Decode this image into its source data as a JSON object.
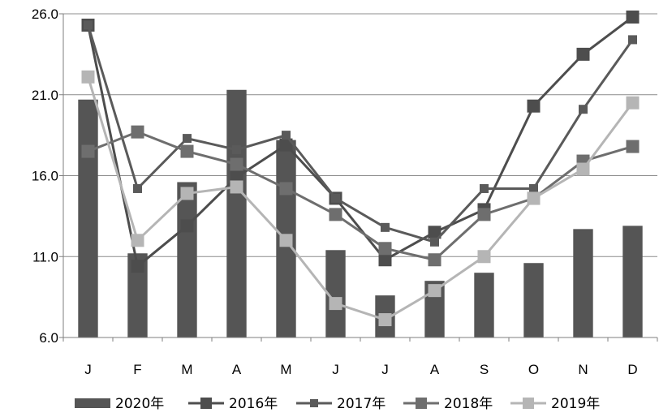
{
  "chart_data": {
    "type": "bar+line",
    "categories": [
      "J",
      "F",
      "M",
      "A",
      "M",
      "J",
      "J",
      "A",
      "S",
      "O",
      "N",
      "D"
    ],
    "ylim": [
      6.0,
      26.0
    ],
    "yticks": [
      "6.0",
      "11.0",
      "16.0",
      "21.0",
      "26.0"
    ],
    "grid": true,
    "legend_position": "bottom",
    "bar_series": {
      "name": "2020年",
      "color": "#555555",
      "values": [
        20.7,
        11.2,
        15.6,
        21.3,
        18.2,
        11.4,
        8.6,
        9.5,
        10.0,
        10.6,
        12.7,
        12.9
      ]
    },
    "series": [
      {
        "name": "2016年",
        "color": "#4d4d4d",
        "marker": "square-large",
        "values": [
          25.3,
          10.4,
          12.9,
          15.9,
          17.9,
          14.6,
          10.8,
          12.5,
          13.9,
          20.3,
          23.5,
          25.8
        ]
      },
      {
        "name": "2017年",
        "color": "#5a5a5a",
        "marker": "square-small",
        "values": [
          25.3,
          15.2,
          18.3,
          17.6,
          18.5,
          14.6,
          12.8,
          11.9,
          15.2,
          15.2,
          20.1,
          24.4
        ]
      },
      {
        "name": "2018年",
        "color": "#6e6e6e",
        "marker": "square-large",
        "values": [
          17.5,
          18.7,
          17.5,
          16.7,
          15.2,
          13.6,
          11.5,
          10.8,
          13.6,
          14.6,
          16.9,
          17.8
        ]
      },
      {
        "name": "2019年",
        "color": "#b5b5b5",
        "marker": "square-large",
        "values": [
          22.1,
          12.0,
          14.9,
          15.3,
          12.0,
          8.1,
          7.1,
          8.9,
          11.0,
          14.6,
          16.4,
          20.5
        ]
      }
    ]
  }
}
